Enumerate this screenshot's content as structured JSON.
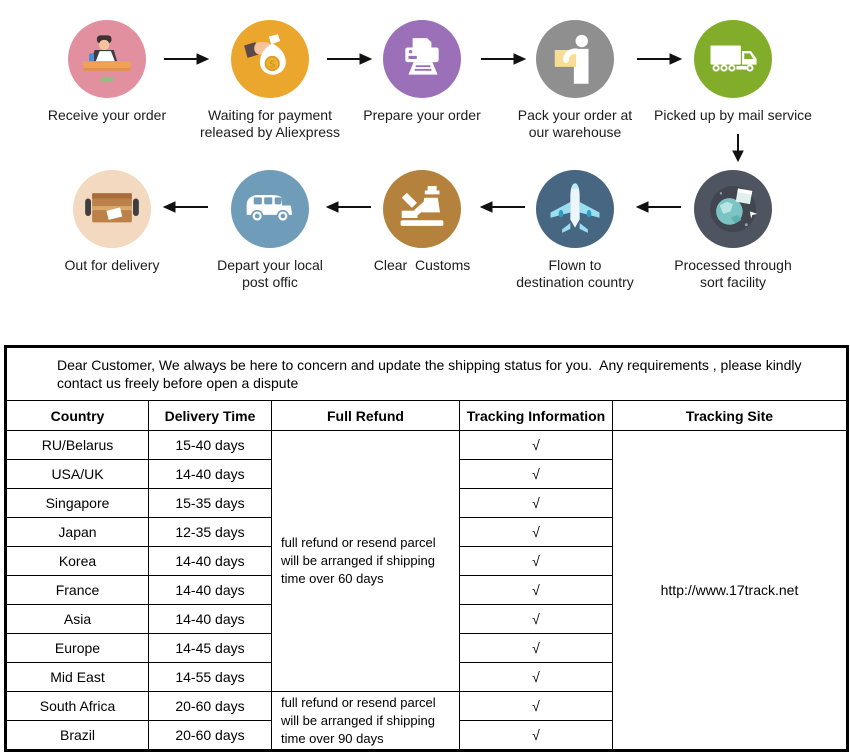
{
  "flow": {
    "steps": [
      {
        "label": "Receive your order",
        "color": "#e2909f",
        "icon": "person-at-desk"
      },
      {
        "label": "Waiting for payment\nreleased by Aliexpress",
        "color": "#eba62d",
        "icon": "money-bag-in-hand"
      },
      {
        "label": "Prepare your order",
        "color": "#9c70b8",
        "icon": "printer"
      },
      {
        "label": "Pack your order at\nour warehouse",
        "color": "#8f8f8f",
        "icon": "worker-with-box"
      },
      {
        "label": "Picked up by mail service",
        "color": "#82ad2a",
        "icon": "mail-truck"
      },
      {
        "label": "Processed through\nsort facility",
        "color": "#4e5460",
        "icon": "globe-parcel"
      },
      {
        "label": "Flown to\ndestination country",
        "color": "#476682",
        "icon": "airplane"
      },
      {
        "label": "Clear  Customs",
        "color": "#b5823e",
        "icon": "customs-officer"
      },
      {
        "label": "Depart your local\npost offic",
        "color": "#6f9db9",
        "icon": "postal-van"
      },
      {
        "label": "Out for delivery",
        "color": "#f3d9c0",
        "icon": "parcel-on-wheels"
      }
    ]
  },
  "table": {
    "notice": "Dear Customer, We always be here to concern and update the shipping status for you.  Any requirements , please kindly\ncontact us freely before open a dispute",
    "headers": [
      "Country",
      "Delivery Time",
      "Full Refund",
      "Tracking Information",
      "Tracking Site"
    ],
    "rows": [
      {
        "country": "RU/Belarus",
        "delivery_time": "15-40 days"
      },
      {
        "country": "USA/UK",
        "delivery_time": "14-40 days"
      },
      {
        "country": "Singapore",
        "delivery_time": "15-35 days"
      },
      {
        "country": "Japan",
        "delivery_time": "12-35 days"
      },
      {
        "country": "Korea",
        "delivery_time": "14-40 days"
      },
      {
        "country": "France",
        "delivery_time": "14-40 days"
      },
      {
        "country": "Asia",
        "delivery_time": "14-40 days"
      },
      {
        "country": "Europe",
        "delivery_time": "14-45 days"
      },
      {
        "country": "Mid East",
        "delivery_time": "14-55 days"
      },
      {
        "country": "South Africa",
        "delivery_time": "20-60 days"
      },
      {
        "country": "Brazil",
        "delivery_time": "20-60 days"
      }
    ],
    "refund_groups": [
      {
        "text": "full refund or resend parcel\nwill be arranged if shipping\ntime over 60 days",
        "rows": 9
      },
      {
        "text": "full refund or resend parcel\nwill be arranged if shipping\ntime over 90 days",
        "rows": 2
      }
    ],
    "tracking_check": "√",
    "tracking_site": "http://www.17track.net"
  }
}
